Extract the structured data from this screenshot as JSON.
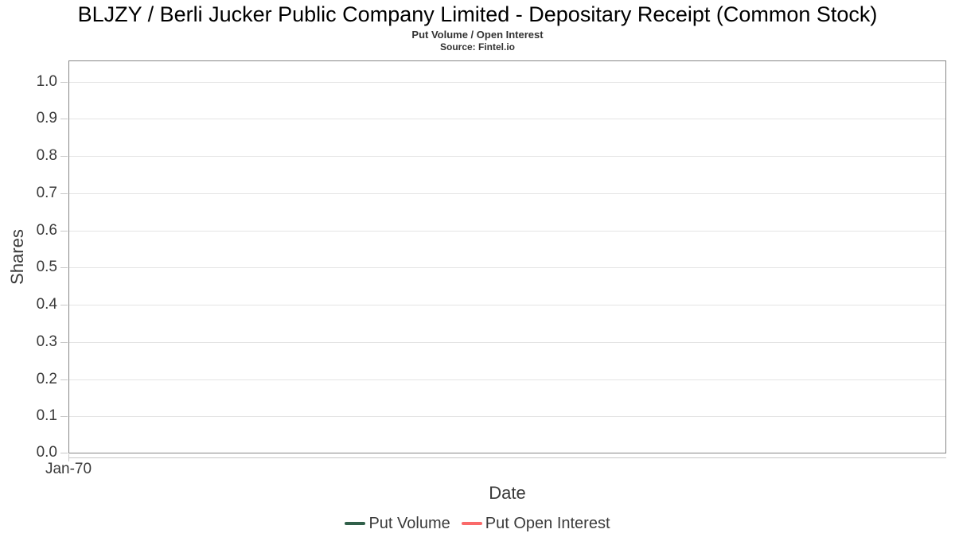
{
  "colors": {
    "plot-border": "#878787",
    "gridline": "#e4e4e4",
    "tick": "#c8c8c8",
    "axis-text": "#3a3a3a",
    "legend-text": "#3a3a3a",
    "title-text": "#000000"
  },
  "chart_data": {
    "type": "line",
    "title": "BLJZY / Berli Jucker Public Company Limited - Depositary Receipt (Common Stock)",
    "subtitle": "Put Volume / Open Interest",
    "source": "Source: Fintel.io",
    "xlabel": "Date",
    "ylabel": "Shares",
    "x_tick_labels": [
      "Jan-70"
    ],
    "y_ticks": [
      0.0,
      0.1,
      0.2,
      0.3,
      0.4,
      0.5,
      0.6,
      0.7,
      0.8,
      0.9,
      1.0
    ],
    "ylim": [
      0,
      1.057
    ],
    "grid": "horizontal-only",
    "legend_position": "bottom-center",
    "series": [
      {
        "name": "Put Volume",
        "color": "#31604a",
        "values": []
      },
      {
        "name": "Put Open Interest",
        "color": "#fa6a6a",
        "values": []
      }
    ]
  }
}
